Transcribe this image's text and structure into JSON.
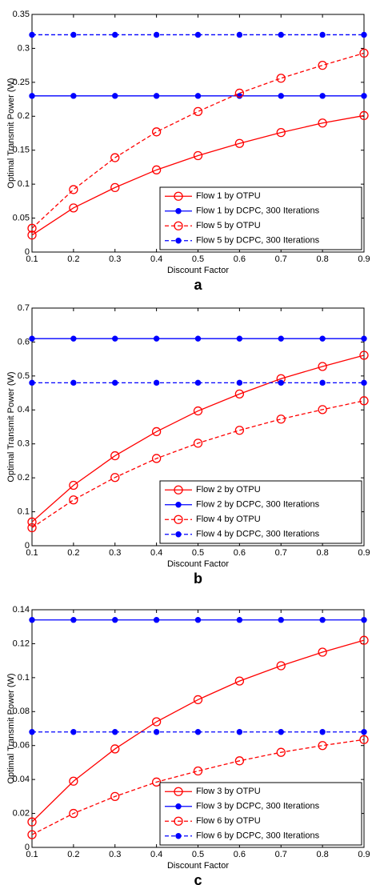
{
  "chart_data": [
    {
      "type": "line",
      "panel_label": "a",
      "xlabel": "Discount Factor",
      "ylabel": "Optimal Transmit Power (W)",
      "x": [
        0.1,
        0.2,
        0.3,
        0.4,
        0.5,
        0.6,
        0.7,
        0.8,
        0.9
      ],
      "xlim": [
        0.1,
        0.9
      ],
      "xticks": [
        0.1,
        0.2,
        0.3,
        0.4,
        0.5,
        0.6,
        0.7,
        0.8,
        0.9
      ],
      "ylim": [
        0,
        0.35
      ],
      "yticks": [
        0,
        0.05,
        0.1,
        0.15,
        0.2,
        0.25,
        0.3,
        0.35
      ],
      "legend": "lower right",
      "series": [
        {
          "name": "Flow 1 by OTPU",
          "color": "#ff0000",
          "linestyle": "solid",
          "marker": "open",
          "values": [
            0.025,
            0.065,
            0.095,
            0.121,
            0.142,
            0.16,
            0.176,
            0.19,
            0.201
          ]
        },
        {
          "name": "Flow 1 by DCPC, 300 Iterations",
          "color": "#0000ff",
          "linestyle": "solid",
          "marker": "filled",
          "values": [
            0.23,
            0.23,
            0.23,
            0.23,
            0.23,
            0.23,
            0.23,
            0.23,
            0.23
          ]
        },
        {
          "name": "Flow 5 by OTPU",
          "color": "#ff0000",
          "linestyle": "dashed",
          "marker": "open",
          "values": [
            0.035,
            0.092,
            0.139,
            0.177,
            0.207,
            0.234,
            0.256,
            0.275,
            0.293
          ]
        },
        {
          "name": "Flow 5 by DCPC, 300 Iterations",
          "color": "#0000ff",
          "linestyle": "dashed",
          "marker": "filled",
          "values": [
            0.32,
            0.32,
            0.32,
            0.32,
            0.32,
            0.32,
            0.32,
            0.32,
            0.32
          ]
        }
      ]
    },
    {
      "type": "line",
      "panel_label": "b",
      "xlabel": "Discount Factor",
      "ylabel": "Optimal Transmit Power (W)",
      "x": [
        0.1,
        0.2,
        0.3,
        0.4,
        0.5,
        0.6,
        0.7,
        0.8,
        0.9
      ],
      "xlim": [
        0.1,
        0.9
      ],
      "xticks": [
        0.1,
        0.2,
        0.3,
        0.4,
        0.5,
        0.6,
        0.7,
        0.8,
        0.9
      ],
      "ylim": [
        0,
        0.7
      ],
      "yticks": [
        0,
        0.1,
        0.2,
        0.3,
        0.4,
        0.5,
        0.6,
        0.7
      ],
      "legend": "lower right",
      "series": [
        {
          "name": "Flow 2 by OTPU",
          "color": "#ff0000",
          "linestyle": "solid",
          "marker": "open",
          "values": [
            0.07,
            0.178,
            0.265,
            0.336,
            0.397,
            0.447,
            0.492,
            0.528,
            0.561
          ]
        },
        {
          "name": "Flow 2 by DCPC, 300 Iterations",
          "color": "#0000ff",
          "linestyle": "solid",
          "marker": "filled",
          "values": [
            0.61,
            0.61,
            0.61,
            0.61,
            0.61,
            0.61,
            0.61,
            0.61,
            0.61
          ]
        },
        {
          "name": "Flow 4 by OTPU",
          "color": "#ff0000",
          "linestyle": "dashed",
          "marker": "open",
          "values": [
            0.053,
            0.135,
            0.201,
            0.257,
            0.302,
            0.34,
            0.373,
            0.401,
            0.427
          ]
        },
        {
          "name": "Flow 4 by DCPC, 300 Iterations",
          "color": "#0000ff",
          "linestyle": "dashed",
          "marker": "filled",
          "values": [
            0.48,
            0.48,
            0.48,
            0.48,
            0.48,
            0.48,
            0.48,
            0.48,
            0.48
          ]
        }
      ]
    },
    {
      "type": "line",
      "panel_label": "c",
      "xlabel": "Discount Factor",
      "ylabel": "Optimal Transmit Power (W)",
      "x": [
        0.1,
        0.2,
        0.3,
        0.4,
        0.5,
        0.6,
        0.7,
        0.8,
        0.9
      ],
      "xlim": [
        0.1,
        0.9
      ],
      "xticks": [
        0.1,
        0.2,
        0.3,
        0.4,
        0.5,
        0.6,
        0.7,
        0.8,
        0.9
      ],
      "ylim": [
        0,
        0.14
      ],
      "yticks": [
        0,
        0.02,
        0.04,
        0.06,
        0.08,
        0.1,
        0.12,
        0.14
      ],
      "legend": "lower right",
      "series": [
        {
          "name": "Flow 3 by OTPU",
          "color": "#ff0000",
          "linestyle": "solid",
          "marker": "open",
          "values": [
            0.015,
            0.039,
            0.058,
            0.074,
            0.087,
            0.098,
            0.107,
            0.115,
            0.122
          ]
        },
        {
          "name": "Flow 3 by DCPC, 300 Iterations",
          "color": "#0000ff",
          "linestyle": "solid",
          "marker": "filled",
          "values": [
            0.134,
            0.134,
            0.134,
            0.134,
            0.134,
            0.134,
            0.134,
            0.134,
            0.134
          ]
        },
        {
          "name": "Flow 6 by OTPU",
          "color": "#ff0000",
          "linestyle": "dashed",
          "marker": "open",
          "values": [
            0.0075,
            0.02,
            0.03,
            0.0385,
            0.045,
            0.051,
            0.056,
            0.06,
            0.0635
          ]
        },
        {
          "name": "Flow 6 by DCPC, 300 Iterations",
          "color": "#0000ff",
          "linestyle": "dashed",
          "marker": "filled",
          "values": [
            0.068,
            0.068,
            0.068,
            0.068,
            0.068,
            0.068,
            0.068,
            0.068,
            0.068
          ]
        }
      ]
    }
  ]
}
